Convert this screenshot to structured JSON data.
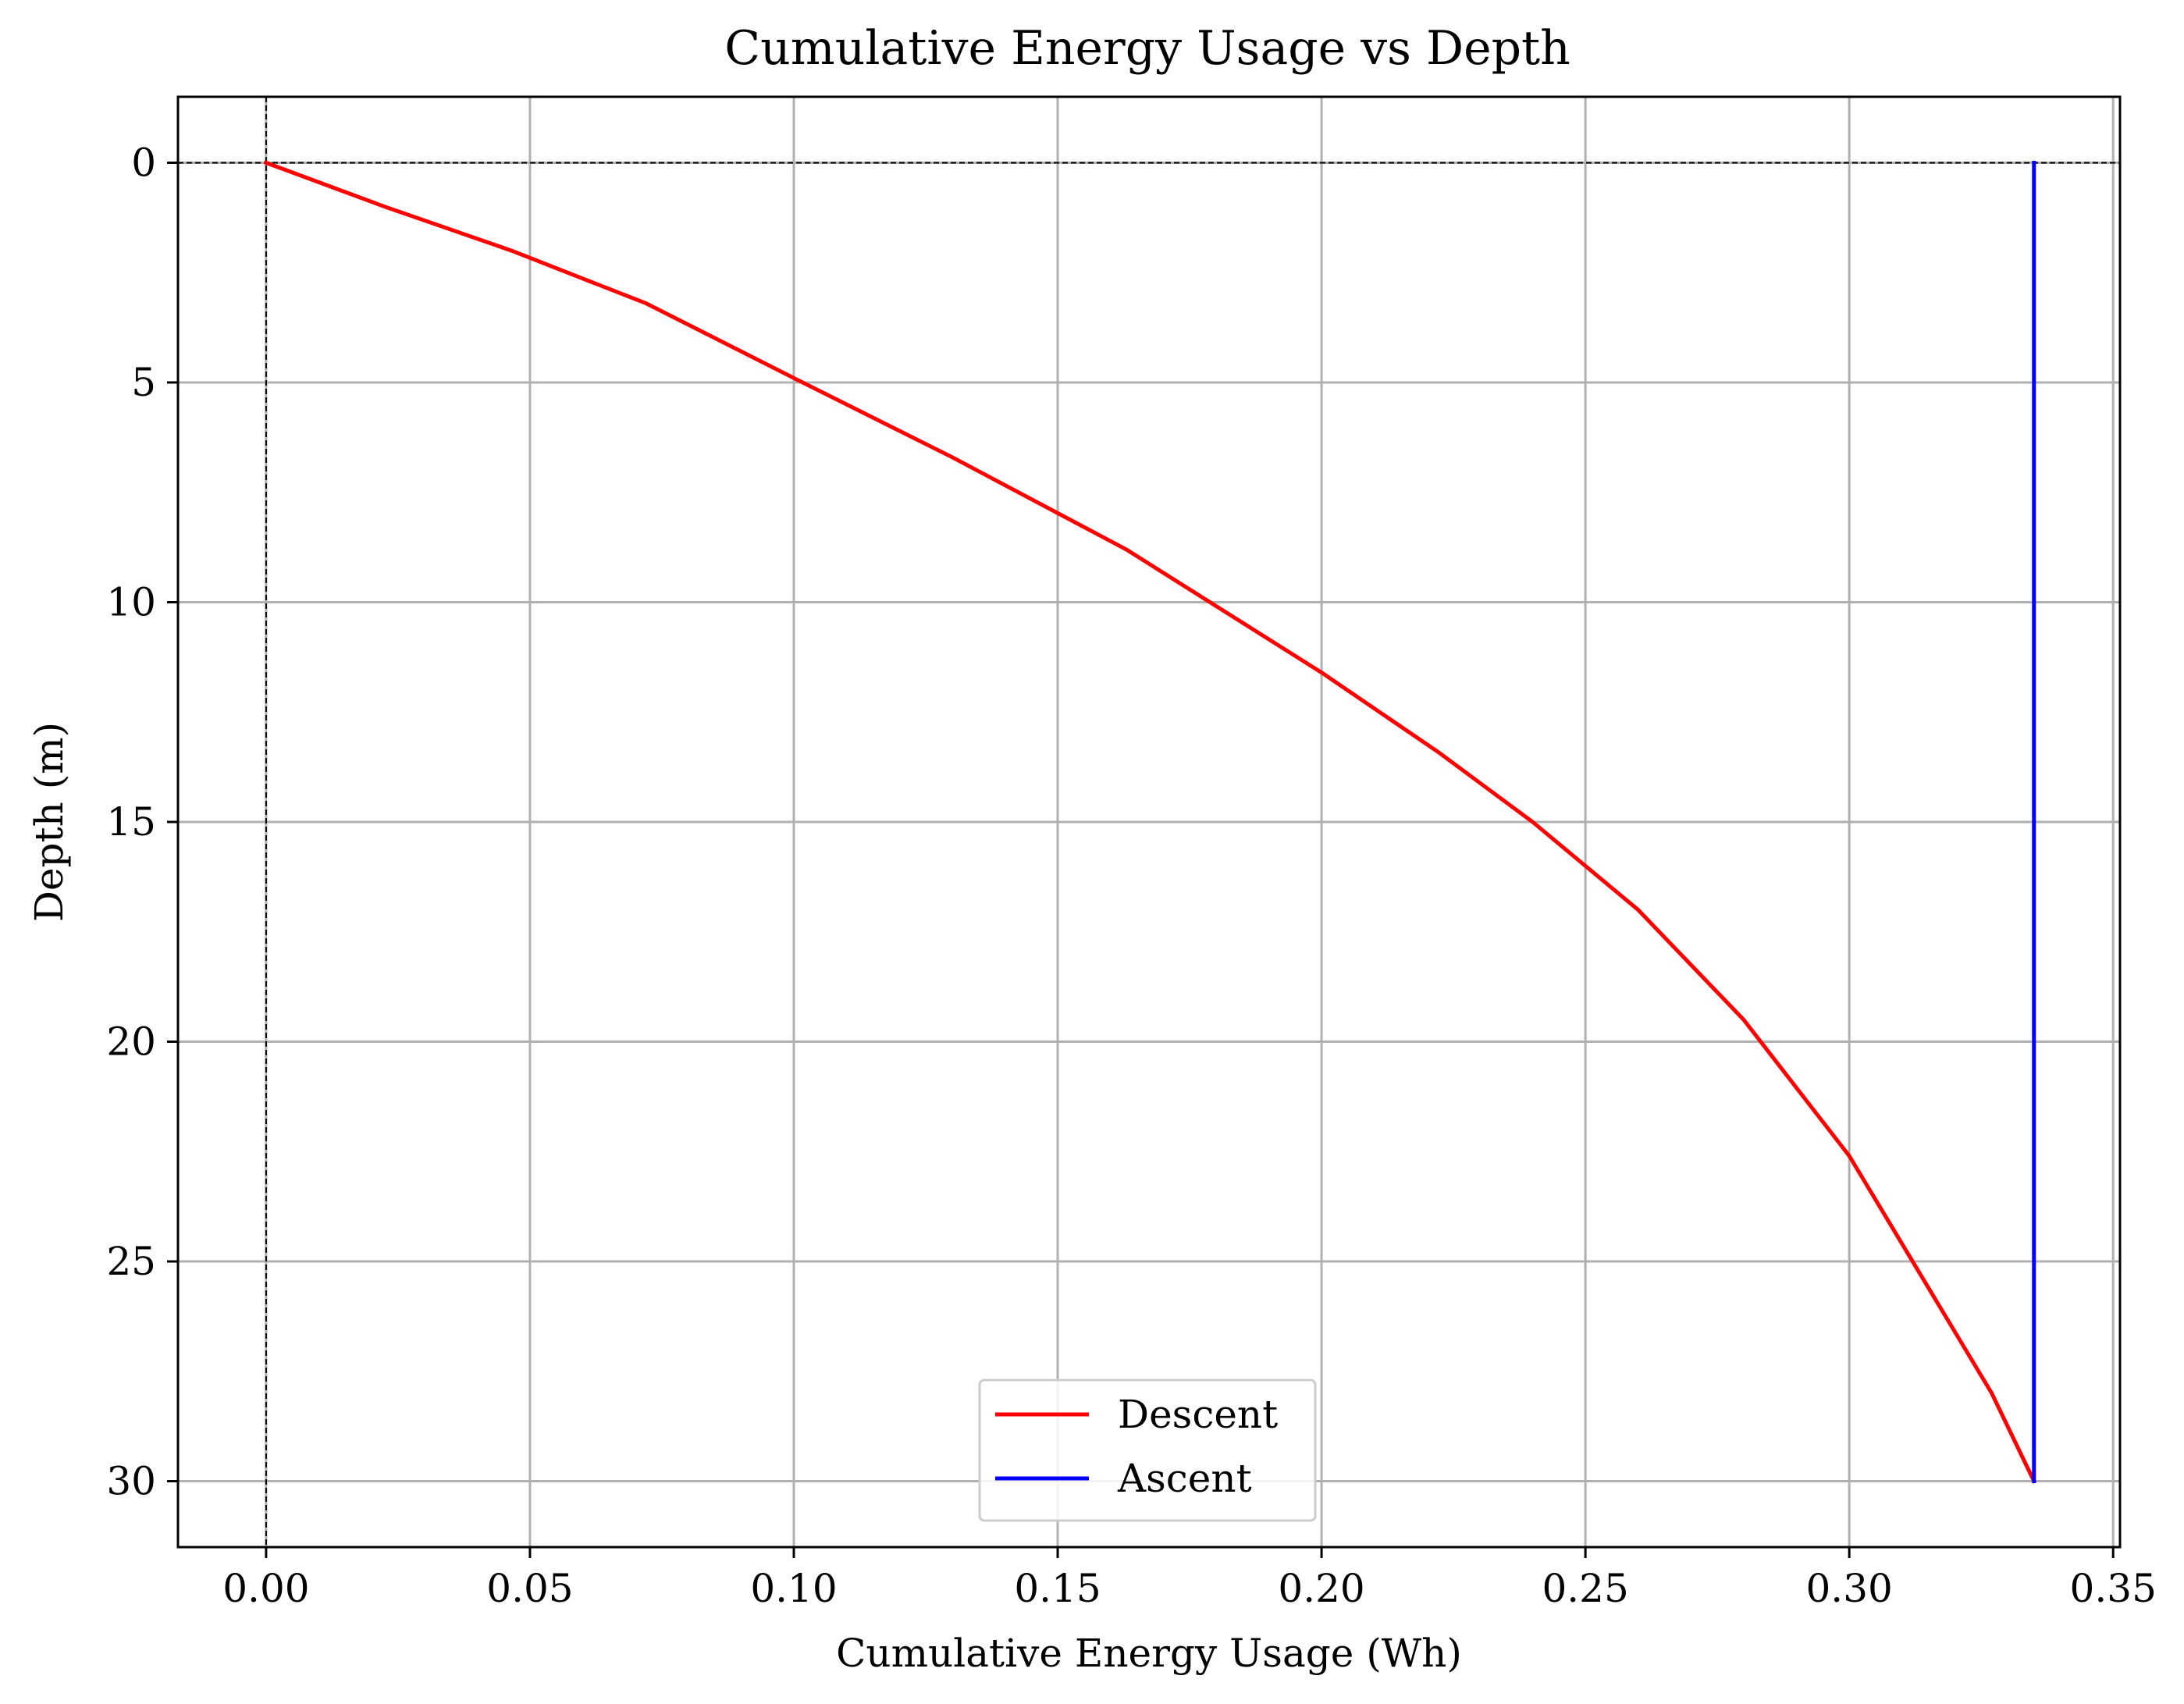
{
  "chart_data": {
    "type": "line",
    "title": "Cumulative Energy Usage vs Depth",
    "xlabel": "Cumulative Energy Usage (Wh)",
    "ylabel": "Depth (m)",
    "xlim": [
      -0.0167,
      0.3513
    ],
    "ylim": [
      31.5,
      -1.5
    ],
    "y_inverted": true,
    "grid": true,
    "legend_position": "lower center",
    "xticks": [
      0.0,
      0.05,
      0.1,
      0.15,
      0.2,
      0.25,
      0.3,
      0.35
    ],
    "xtick_labels": [
      "0.00",
      "0.05",
      "0.10",
      "0.15",
      "0.20",
      "0.25",
      "0.30",
      "0.35"
    ],
    "yticks": [
      0,
      5,
      10,
      15,
      20,
      25,
      30
    ],
    "ytick_labels": [
      "0",
      "5",
      "10",
      "15",
      "20",
      "25",
      "30"
    ],
    "reference_lines": [
      {
        "orientation": "horizontal",
        "value": 0,
        "style": "dashed",
        "color": "#000000"
      },
      {
        "orientation": "vertical",
        "value": 0,
        "style": "dashed",
        "color": "#000000"
      }
    ],
    "series": [
      {
        "name": "Descent",
        "color": "#ff0000",
        "x": [
          0.0,
          0.0225,
          0.0465,
          0.072,
          0.1,
          0.13,
          0.163,
          0.2,
          0.222,
          0.24,
          0.26,
          0.28,
          0.3,
          0.315,
          0.327,
          0.335
        ],
        "y": [
          0,
          1,
          2,
          3.2,
          4.9,
          6.7,
          8.8,
          11.6,
          13.4,
          15.0,
          17.0,
          19.5,
          22.6,
          25.6,
          28.0,
          30
        ]
      },
      {
        "name": "Ascent",
        "color": "#0000ff",
        "x": [
          0.335,
          0.335
        ],
        "y": [
          30,
          0
        ]
      }
    ]
  }
}
